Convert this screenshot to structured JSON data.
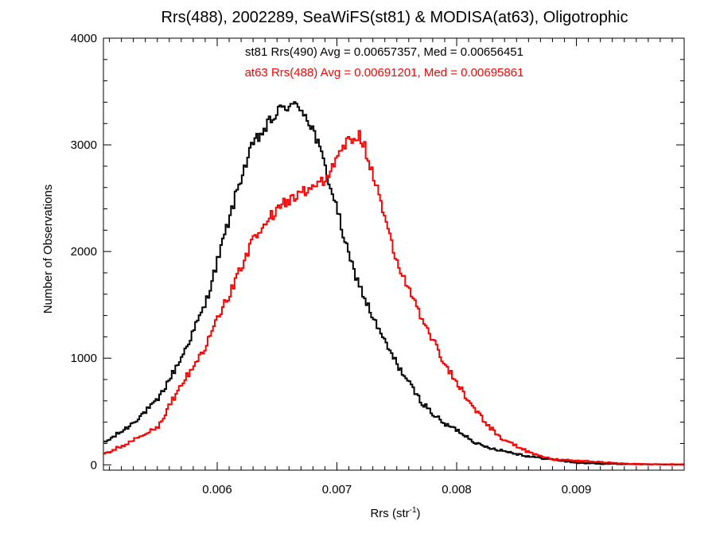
{
  "chart_data": {
    "type": "line",
    "title": "Rrs(488), 2002289, SeaWiFS(st81) & MODISA(at63), Oligotrophic",
    "xlabel": "Rrs (str-1)",
    "xlabel_base": "Rrs (str",
    "xlabel_sup": "-1",
    "xlabel_end": ")",
    "ylabel": "Number of Observations",
    "xlim": [
      0.00505,
      0.0099
    ],
    "ylim": [
      -50,
      4000
    ],
    "x_ticks": [
      {
        "value": 0.006,
        "label": "0.006"
      },
      {
        "value": 0.007,
        "label": "0.007"
      },
      {
        "value": 0.008,
        "label": "0.008"
      },
      {
        "value": 0.009,
        "label": "0.009"
      }
    ],
    "y_ticks": [
      {
        "value": 0,
        "label": "0"
      },
      {
        "value": 1000,
        "label": "1000"
      },
      {
        "value": 2000,
        "label": "2000"
      },
      {
        "value": 3000,
        "label": "3000"
      },
      {
        "value": 4000,
        "label": "4000"
      }
    ],
    "annotations": [
      {
        "text": "st81 Rrs(490) Avg = 0.00657357, Med = 0.00656451",
        "color": "#000000"
      },
      {
        "text": "at63 Rrs(488) Avg = 0.00691201, Med = 0.00695861",
        "color": "#ff0000"
      }
    ],
    "series": [
      {
        "name": "st81",
        "color": "#000000",
        "x": [
          0.00505,
          0.00525,
          0.0055,
          0.0057,
          0.0059,
          0.0061,
          0.0062,
          0.0063,
          0.0064,
          0.0065,
          0.0066,
          0.00665,
          0.0067,
          0.0068,
          0.0069,
          0.007,
          0.0071,
          0.0072,
          0.0073,
          0.0074,
          0.0075,
          0.0076,
          0.0077,
          0.0078,
          0.0079,
          0.008,
          0.0082,
          0.0084,
          0.0086,
          0.0088,
          0.009,
          0.0092,
          0.0094,
          0.0096,
          0.0099
        ],
        "y": [
          200,
          350,
          600,
          1000,
          1500,
          2300,
          2700,
          3000,
          3150,
          3300,
          3380,
          3350,
          3360,
          3150,
          2800,
          2400,
          1950,
          1650,
          1380,
          1150,
          950,
          770,
          600,
          480,
          380,
          330,
          180,
          130,
          80,
          50,
          20,
          10,
          8,
          5,
          2
        ]
      },
      {
        "name": "at63",
        "color": "#ff0000",
        "x": [
          0.00505,
          0.00525,
          0.0055,
          0.0057,
          0.0059,
          0.0061,
          0.0063,
          0.0065,
          0.0067,
          0.0068,
          0.0069,
          0.007,
          0.0071,
          0.0072,
          0.0073,
          0.0074,
          0.0075,
          0.0076,
          0.0077,
          0.0078,
          0.0079,
          0.008,
          0.0081,
          0.0082,
          0.0083,
          0.0084,
          0.0085,
          0.0086,
          0.0087,
          0.0088,
          0.009,
          0.0092,
          0.0094,
          0.0096,
          0.0099
        ],
        "y": [
          100,
          200,
          350,
          750,
          1100,
          1600,
          2100,
          2400,
          2550,
          2620,
          2680,
          2850,
          3050,
          3080,
          2750,
          2300,
          1920,
          1650,
          1400,
          1180,
          950,
          780,
          600,
          450,
          330,
          230,
          180,
          120,
          90,
          50,
          40,
          25,
          10,
          5,
          5
        ]
      }
    ]
  }
}
